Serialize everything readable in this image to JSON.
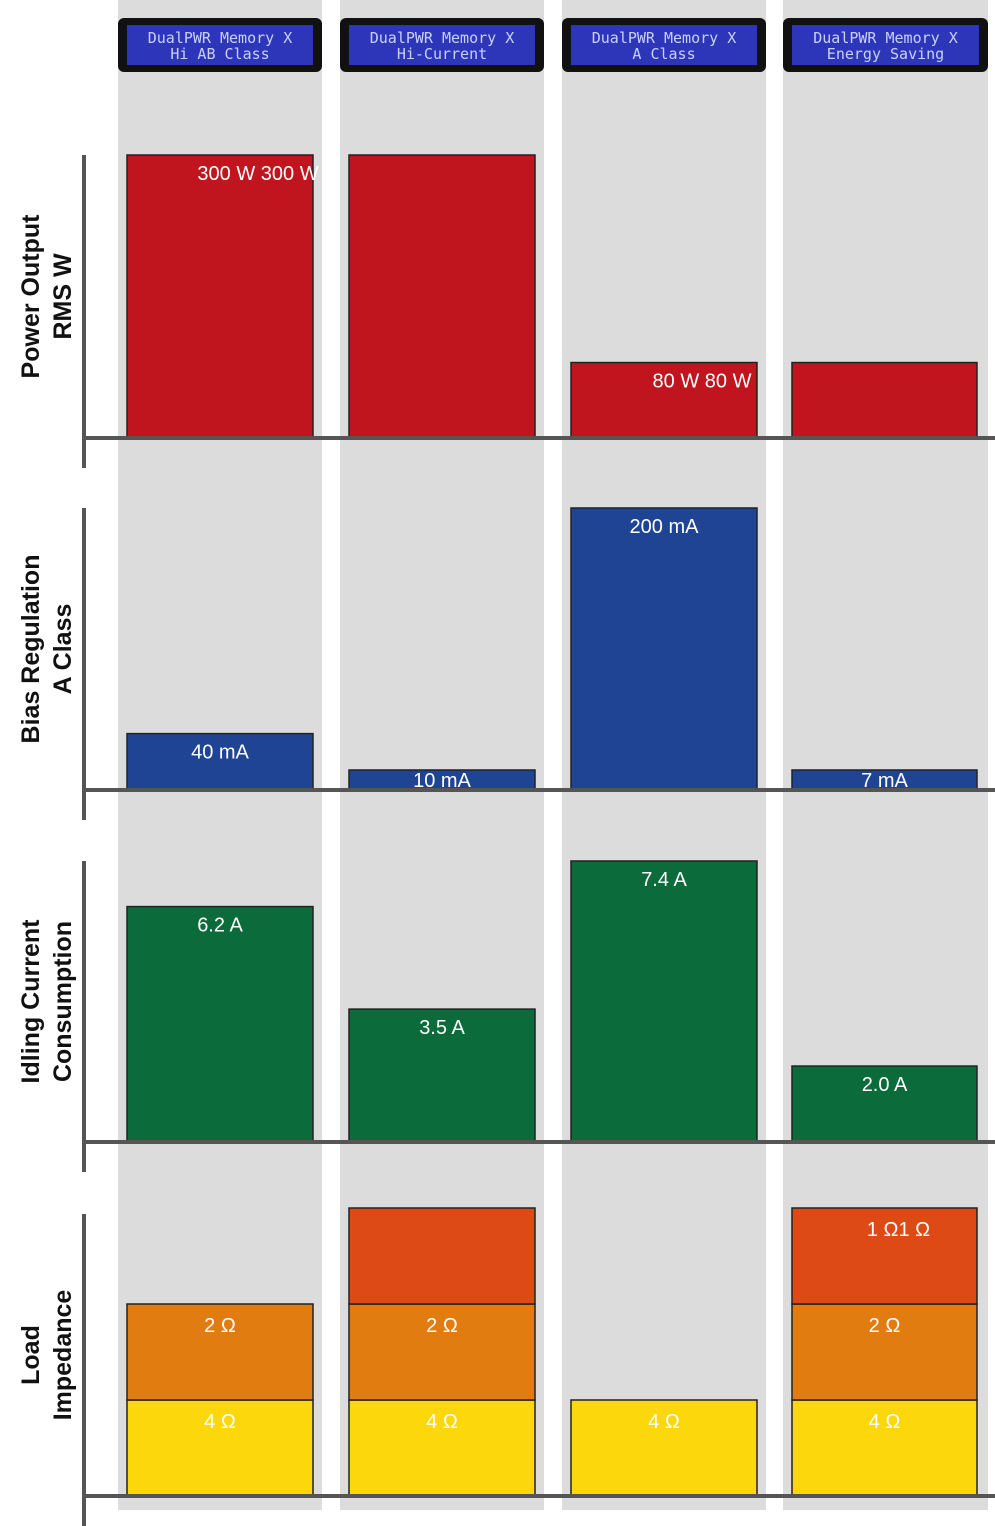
{
  "chart_data": {
    "type": "bar",
    "columns": [
      {
        "line1": "DualPWR Memory X",
        "line2": "Hi AB Class"
      },
      {
        "line1": "DualPWR Memory X",
        "line2": "Hi-Current"
      },
      {
        "line1": "DualPWR Memory X",
        "line2": "A Class"
      },
      {
        "line1": "DualPWR Memory X",
        "line2": "Energy Saving"
      }
    ],
    "panels": [
      {
        "title": [
          "Power Output",
          "RMS W"
        ],
        "max": 300,
        "color": "#c0151e",
        "values": [
          300,
          300,
          80,
          80
        ],
        "labels": [
          "300 W 300 W",
          "",
          "80 W 80 W",
          ""
        ]
      },
      {
        "title": [
          "Bias Regulation",
          "A Class"
        ],
        "max": 200,
        "color": "#1f4494",
        "values": [
          40,
          10,
          200,
          7
        ],
        "labels": [
          "40 mA",
          "10 mA",
          "200 mA",
          "7 mA"
        ]
      },
      {
        "title": [
          "Idling Current",
          "Consumption"
        ],
        "max": 7.4,
        "color": "#0b6b3a",
        "values": [
          6.2,
          3.5,
          7.4,
          2.0
        ],
        "labels": [
          "6.2 A",
          "3.5 A",
          "7.4 A",
          "2.0 A"
        ]
      },
      {
        "title": [
          "Load",
          "Impedance"
        ],
        "type": "stacked",
        "levels": [
          {
            "name": "4 Ω",
            "color": "#fcd70c",
            "label": "4 Ω"
          },
          {
            "name": "2 Ω",
            "color": "#e07c10",
            "label": "2 Ω"
          },
          {
            "name": "1 Ω",
            "color": "#de4a16",
            "label": "1 Ω1 Ω"
          }
        ],
        "values": [
          2,
          3,
          1,
          3
        ],
        "show_labels": [
          [
            true,
            true,
            false
          ],
          [
            true,
            true,
            false
          ],
          [
            true,
            false,
            false
          ],
          [
            true,
            true,
            true
          ]
        ]
      }
    ]
  }
}
